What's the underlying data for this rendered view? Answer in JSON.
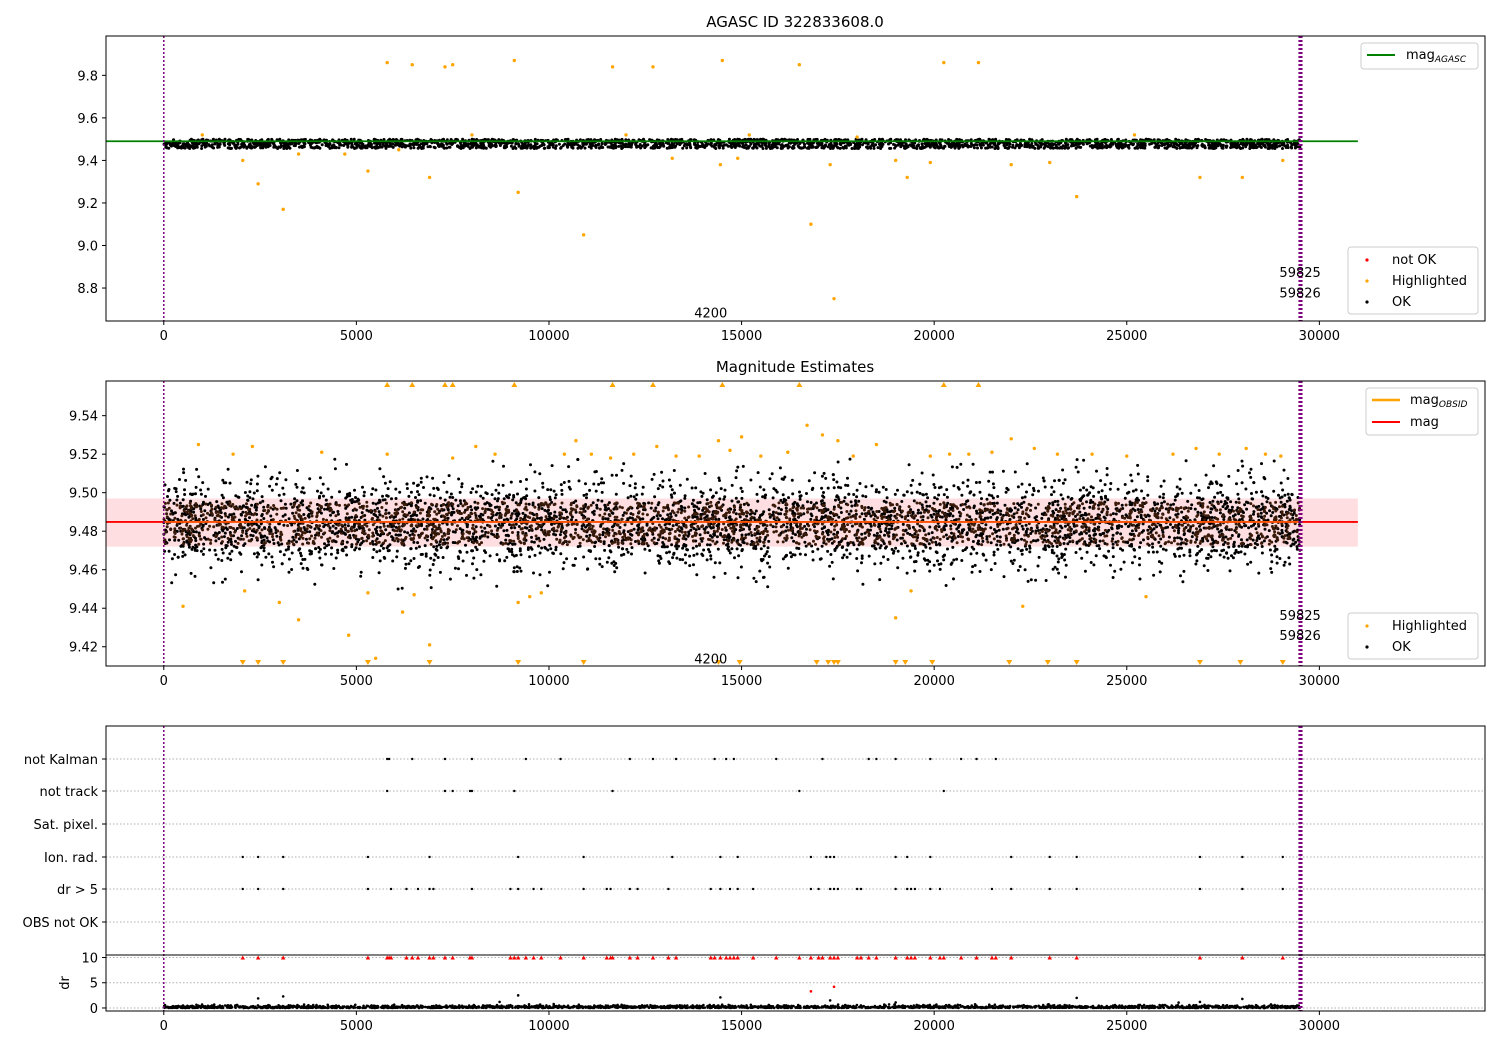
{
  "chart_data": [
    {
      "type": "scatter",
      "title": "AGASC ID 322833608.0",
      "xlim": [
        -1500,
        34300
      ],
      "ylim": [
        8.645,
        9.985
      ],
      "xticks": [
        0,
        5000,
        10000,
        15000,
        20000,
        25000,
        30000
      ],
      "xtick_labels": [
        "0",
        "5000",
        "10000",
        "15000",
        "20000",
        "25000",
        "30000"
      ],
      "yticks": [
        8.8,
        9.0,
        9.2,
        9.4,
        9.6,
        9.8
      ],
      "ytick_labels": [
        "8.8",
        "9.0",
        "9.2",
        "9.4",
        "9.6",
        "9.8"
      ],
      "hlines": [
        {
          "name": "mag_AGASC",
          "label_main": "mag",
          "label_sub": "AGASC",
          "y": 9.49,
          "x_range": [
            -1500,
            31000
          ],
          "color": "#008000"
        }
      ],
      "obs_boundaries": [
        0,
        29480,
        29510,
        29540
      ],
      "boundary_color": "#800080",
      "annotations": [
        {
          "text": "4200",
          "x": 14200,
          "y": 8.685
        },
        {
          "text": "59825",
          "x": 29500,
          "y": 8.875
        },
        {
          "text": "59826",
          "x": 29500,
          "y": 8.78
        }
      ],
      "ok_band": {
        "center": 9.478,
        "spread": 0.022,
        "x_range": [
          0,
          29500
        ],
        "color": "#000000"
      },
      "highlighted": {
        "color": "#ffa500",
        "x": [
          5800,
          6450,
          7300,
          7500,
          9100,
          11650,
          12700,
          14500,
          16500,
          20250,
          21150,
          2050,
          2450,
          3100,
          3500,
          5300,
          6900,
          9200,
          10900,
          13200,
          14450,
          14900,
          16800,
          17300,
          17400,
          19000,
          19300,
          19900,
          22000,
          23000,
          23700,
          26900,
          28000,
          29050,
          1000,
          4700,
          6100,
          8000,
          12000,
          15200,
          18000,
          25200
        ],
        "y": [
          9.86,
          9.85,
          9.84,
          9.85,
          9.87,
          9.84,
          9.84,
          9.87,
          9.85,
          9.86,
          9.86,
          9.4,
          9.29,
          9.17,
          9.43,
          9.35,
          9.32,
          9.25,
          9.05,
          9.41,
          9.38,
          9.41,
          9.1,
          9.38,
          8.75,
          9.4,
          9.32,
          9.39,
          9.38,
          9.39,
          9.23,
          9.32,
          9.32,
          9.4,
          9.52,
          9.43,
          9.45,
          9.52,
          9.52,
          9.52,
          9.51,
          9.52
        ]
      },
      "legend_top": [
        {
          "label_main": "mag",
          "label_sub": "AGASC",
          "color": "#008000"
        }
      ],
      "legend_bottom": [
        {
          "label": "not OK",
          "color": "#ff0000"
        },
        {
          "label": "Highlighted",
          "color": "#ffa500"
        },
        {
          "label": "OK",
          "color": "#000000"
        }
      ]
    },
    {
      "type": "scatter",
      "title": "Magnitude Estimates",
      "xlim": [
        -1500,
        34300
      ],
      "ylim": [
        9.41,
        9.558
      ],
      "xticks": [
        0,
        5000,
        10000,
        15000,
        20000,
        25000,
        30000
      ],
      "xtick_labels": [
        "0",
        "5000",
        "10000",
        "15000",
        "20000",
        "25000",
        "30000"
      ],
      "yticks": [
        9.42,
        9.44,
        9.46,
        9.48,
        9.5,
        9.52,
        9.54
      ],
      "ytick_labels": [
        "9.42",
        "9.44",
        "9.46",
        "9.48",
        "9.50",
        "9.52",
        "9.54"
      ],
      "hlines": [
        {
          "name": "mag",
          "label_main": "mag",
          "y": 9.4848,
          "x_range": [
            -1500,
            31000
          ],
          "color": "#ff0000"
        }
      ],
      "obsid_line": {
        "name": "mag_OBSID",
        "label_main": "mag",
        "label_sub": "OBSID",
        "y": 9.4848,
        "x_range": [
          0,
          29500
        ],
        "color": "#ffa500"
      },
      "band": {
        "y_low": 9.472,
        "y_high": 9.497,
        "x_range": [
          -1500,
          31000
        ],
        "color": "#ffd8dc"
      },
      "obs_boundaries": [
        0,
        29480,
        29510,
        29540
      ],
      "boundary_color": "#800080",
      "annotations": [
        {
          "text": "4200",
          "x": 14200,
          "y": 9.414
        },
        {
          "text": "59825",
          "x": 29500,
          "y": 9.4365
        },
        {
          "text": "59826",
          "x": 29500,
          "y": 9.426
        }
      ],
      "ok_band": {
        "center": 9.484,
        "spread": 0.014,
        "outer": 0.034,
        "x_range": [
          0,
          29500
        ],
        "color": "#000000",
        "core_color": "#3a1a08"
      },
      "highlighted": {
        "color": "#ffa500",
        "x": [
          500,
          900,
          1800,
          2100,
          2300,
          3000,
          3500,
          4100,
          4800,
          5300,
          5500,
          5800,
          6200,
          6500,
          6900,
          7500,
          8100,
          8600,
          9200,
          9500,
          9800,
          10400,
          10700,
          11100,
          11600,
          12200,
          12800,
          13300,
          13900,
          14400,
          14700,
          15000,
          15500,
          16200,
          16700,
          17100,
          17500,
          17900,
          18500,
          19000,
          19400,
          19900,
          20400,
          20900,
          21500,
          22000,
          22300,
          22600,
          23200,
          24100,
          25000,
          25500,
          26200,
          26800,
          27400,
          28100,
          28600,
          29000
        ],
        "y": [
          9.441,
          9.525,
          9.52,
          9.449,
          9.524,
          9.443,
          9.434,
          9.521,
          9.426,
          9.448,
          9.414,
          9.52,
          9.438,
          9.447,
          9.421,
          9.518,
          9.524,
          9.52,
          9.443,
          9.446,
          9.448,
          9.52,
          9.527,
          9.52,
          9.518,
          9.52,
          9.524,
          9.519,
          9.519,
          9.527,
          9.522,
          9.529,
          9.519,
          9.521,
          9.535,
          9.53,
          9.527,
          9.519,
          9.525,
          9.435,
          9.449,
          9.519,
          9.52,
          9.52,
          9.521,
          9.528,
          9.441,
          9.523,
          9.52,
          9.52,
          9.519,
          9.446,
          9.52,
          9.523,
          9.52,
          9.523,
          9.52,
          9.519
        ]
      },
      "out_of_range_up_x": [
        5800,
        6450,
        7300,
        7500,
        9100,
        11650,
        12700,
        14500,
        16500,
        20250,
        21150
      ],
      "out_of_range_down_x": [
        2050,
        2450,
        3100,
        5300,
        6900,
        9200,
        10900,
        14400,
        14950,
        16950,
        17250,
        17400,
        17500,
        19000,
        19250,
        19950,
        21950,
        22950,
        23700,
        26900,
        27950,
        29050
      ],
      "legend_top": [
        {
          "label_main": "mag",
          "label_sub": "OBSID",
          "color": "#ffa500"
        },
        {
          "label_main": "mag",
          "label_sub": "",
          "color": "#ff0000"
        }
      ],
      "legend_bottom": [
        {
          "label": "Highlighted",
          "color": "#ffa500"
        },
        {
          "label": "OK",
          "color": "#000000"
        }
      ]
    },
    {
      "type": "scatter",
      "title": "",
      "xlim": [
        -1500,
        34300
      ],
      "xticks": [
        0,
        5000,
        10000,
        15000,
        20000,
        25000,
        30000
      ],
      "xtick_labels": [
        "0",
        "5000",
        "10000",
        "15000",
        "20000",
        "25000",
        "30000"
      ],
      "flag_rows": [
        {
          "label": "not Kalman",
          "x": [
            5800,
            5850,
            6450,
            7300,
            8000,
            9400,
            10300,
            12100,
            12700,
            13300,
            14300,
            14600,
            14800,
            15900,
            17100,
            18300,
            18500,
            19000,
            19900,
            20700,
            21100,
            21600
          ]
        },
        {
          "label": "not track",
          "x": [
            5800,
            7300,
            7500,
            7950,
            8000,
            9100,
            11650,
            16500,
            20250
          ]
        },
        {
          "label": "Sat. pixel.",
          "x": []
        },
        {
          "label": "Ion. rad.",
          "x": [
            2050,
            2450,
            3100,
            5300,
            6900,
            9200,
            10900,
            13200,
            14450,
            14900,
            16800,
            17200,
            17300,
            17400,
            19000,
            19300,
            19900,
            22000,
            23000,
            23700,
            26900,
            28000,
            29050
          ]
        },
        {
          "label": "dr > 5",
          "x": [
            2050,
            2450,
            3100,
            5300,
            5900,
            6300,
            6600,
            6900,
            7000,
            8000,
            9000,
            9200,
            9600,
            9800,
            10900,
            11500,
            11600,
            12100,
            12300,
            13100,
            14200,
            14450,
            14700,
            14900,
            15300,
            16800,
            17000,
            17300,
            17400,
            17500,
            18000,
            18100,
            19000,
            19300,
            19400,
            19500,
            19900,
            20150,
            21500,
            22000,
            23000,
            23700,
            26900,
            28000,
            29050
          ]
        },
        {
          "label": "OBS not OK",
          "x": []
        }
      ],
      "dr": {
        "ylabel": "dr",
        "ylim": [
          -0.6,
          10.5
        ],
        "yticks": [
          0,
          5,
          10
        ],
        "ytick_labels": [
          "0",
          "5",
          "10"
        ],
        "clip_value": 10,
        "clipped_x": [
          2050,
          2450,
          3100,
          5300,
          5800,
          5850,
          5900,
          6300,
          6450,
          6600,
          6900,
          7000,
          7300,
          7500,
          7950,
          8000,
          9000,
          9100,
          9200,
          9400,
          9600,
          9800,
          10300,
          10900,
          11500,
          11600,
          11650,
          12100,
          12300,
          12700,
          13100,
          13300,
          14200,
          14300,
          14450,
          14600,
          14700,
          14800,
          14900,
          15300,
          15900,
          16500,
          16800,
          17000,
          17100,
          17300,
          17400,
          17500,
          18000,
          18100,
          18300,
          18500,
          19000,
          19300,
          19400,
          19500,
          19900,
          20150,
          20250,
          20700,
          21100,
          21500,
          21600,
          22000,
          23000,
          23700,
          26900,
          28000,
          29050
        ],
        "red_points": [
          {
            "x": 16800,
            "y": 3.3
          },
          {
            "x": 17400,
            "y": 4.2
          }
        ],
        "black_outliers": [
          {
            "x": 2450,
            "y": 1.9
          },
          {
            "x": 3100,
            "y": 2.3
          },
          {
            "x": 9200,
            "y": 2.5
          },
          {
            "x": 14450,
            "y": 2.1
          },
          {
            "x": 23700,
            "y": 2.0
          },
          {
            "x": 28000,
            "y": 1.8
          },
          {
            "x": 19000,
            "y": 1.1
          },
          {
            "x": 26900,
            "y": 1.2
          },
          {
            "x": 17300,
            "y": 1.5
          }
        ]
      },
      "obs_boundaries": [
        0,
        29480,
        29510,
        29540
      ],
      "boundary_color": "#800080"
    }
  ]
}
